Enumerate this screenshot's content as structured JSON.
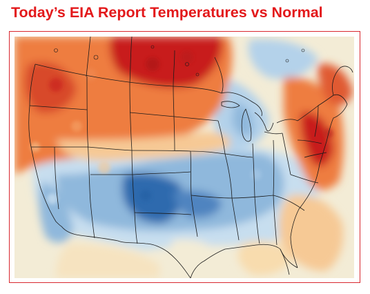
{
  "title": "Today’s EIA Report Temperatures vs Normal",
  "map": {
    "type": "temperature-anomaly",
    "region": "contiguous-us-and-southern-canada",
    "colors": {
      "warm_strong": "#c81e1e",
      "warm": "#ee7d3f",
      "warm_light": "#f6c995",
      "neutral": "#f3ecd6",
      "cool_light": "#c7deef",
      "cool": "#7fadd6",
      "cool_strong": "#2e6aae",
      "boundary": "#1a1a1a",
      "frame_border": "#d9272e",
      "title_color": "#e3191b"
    }
  }
}
